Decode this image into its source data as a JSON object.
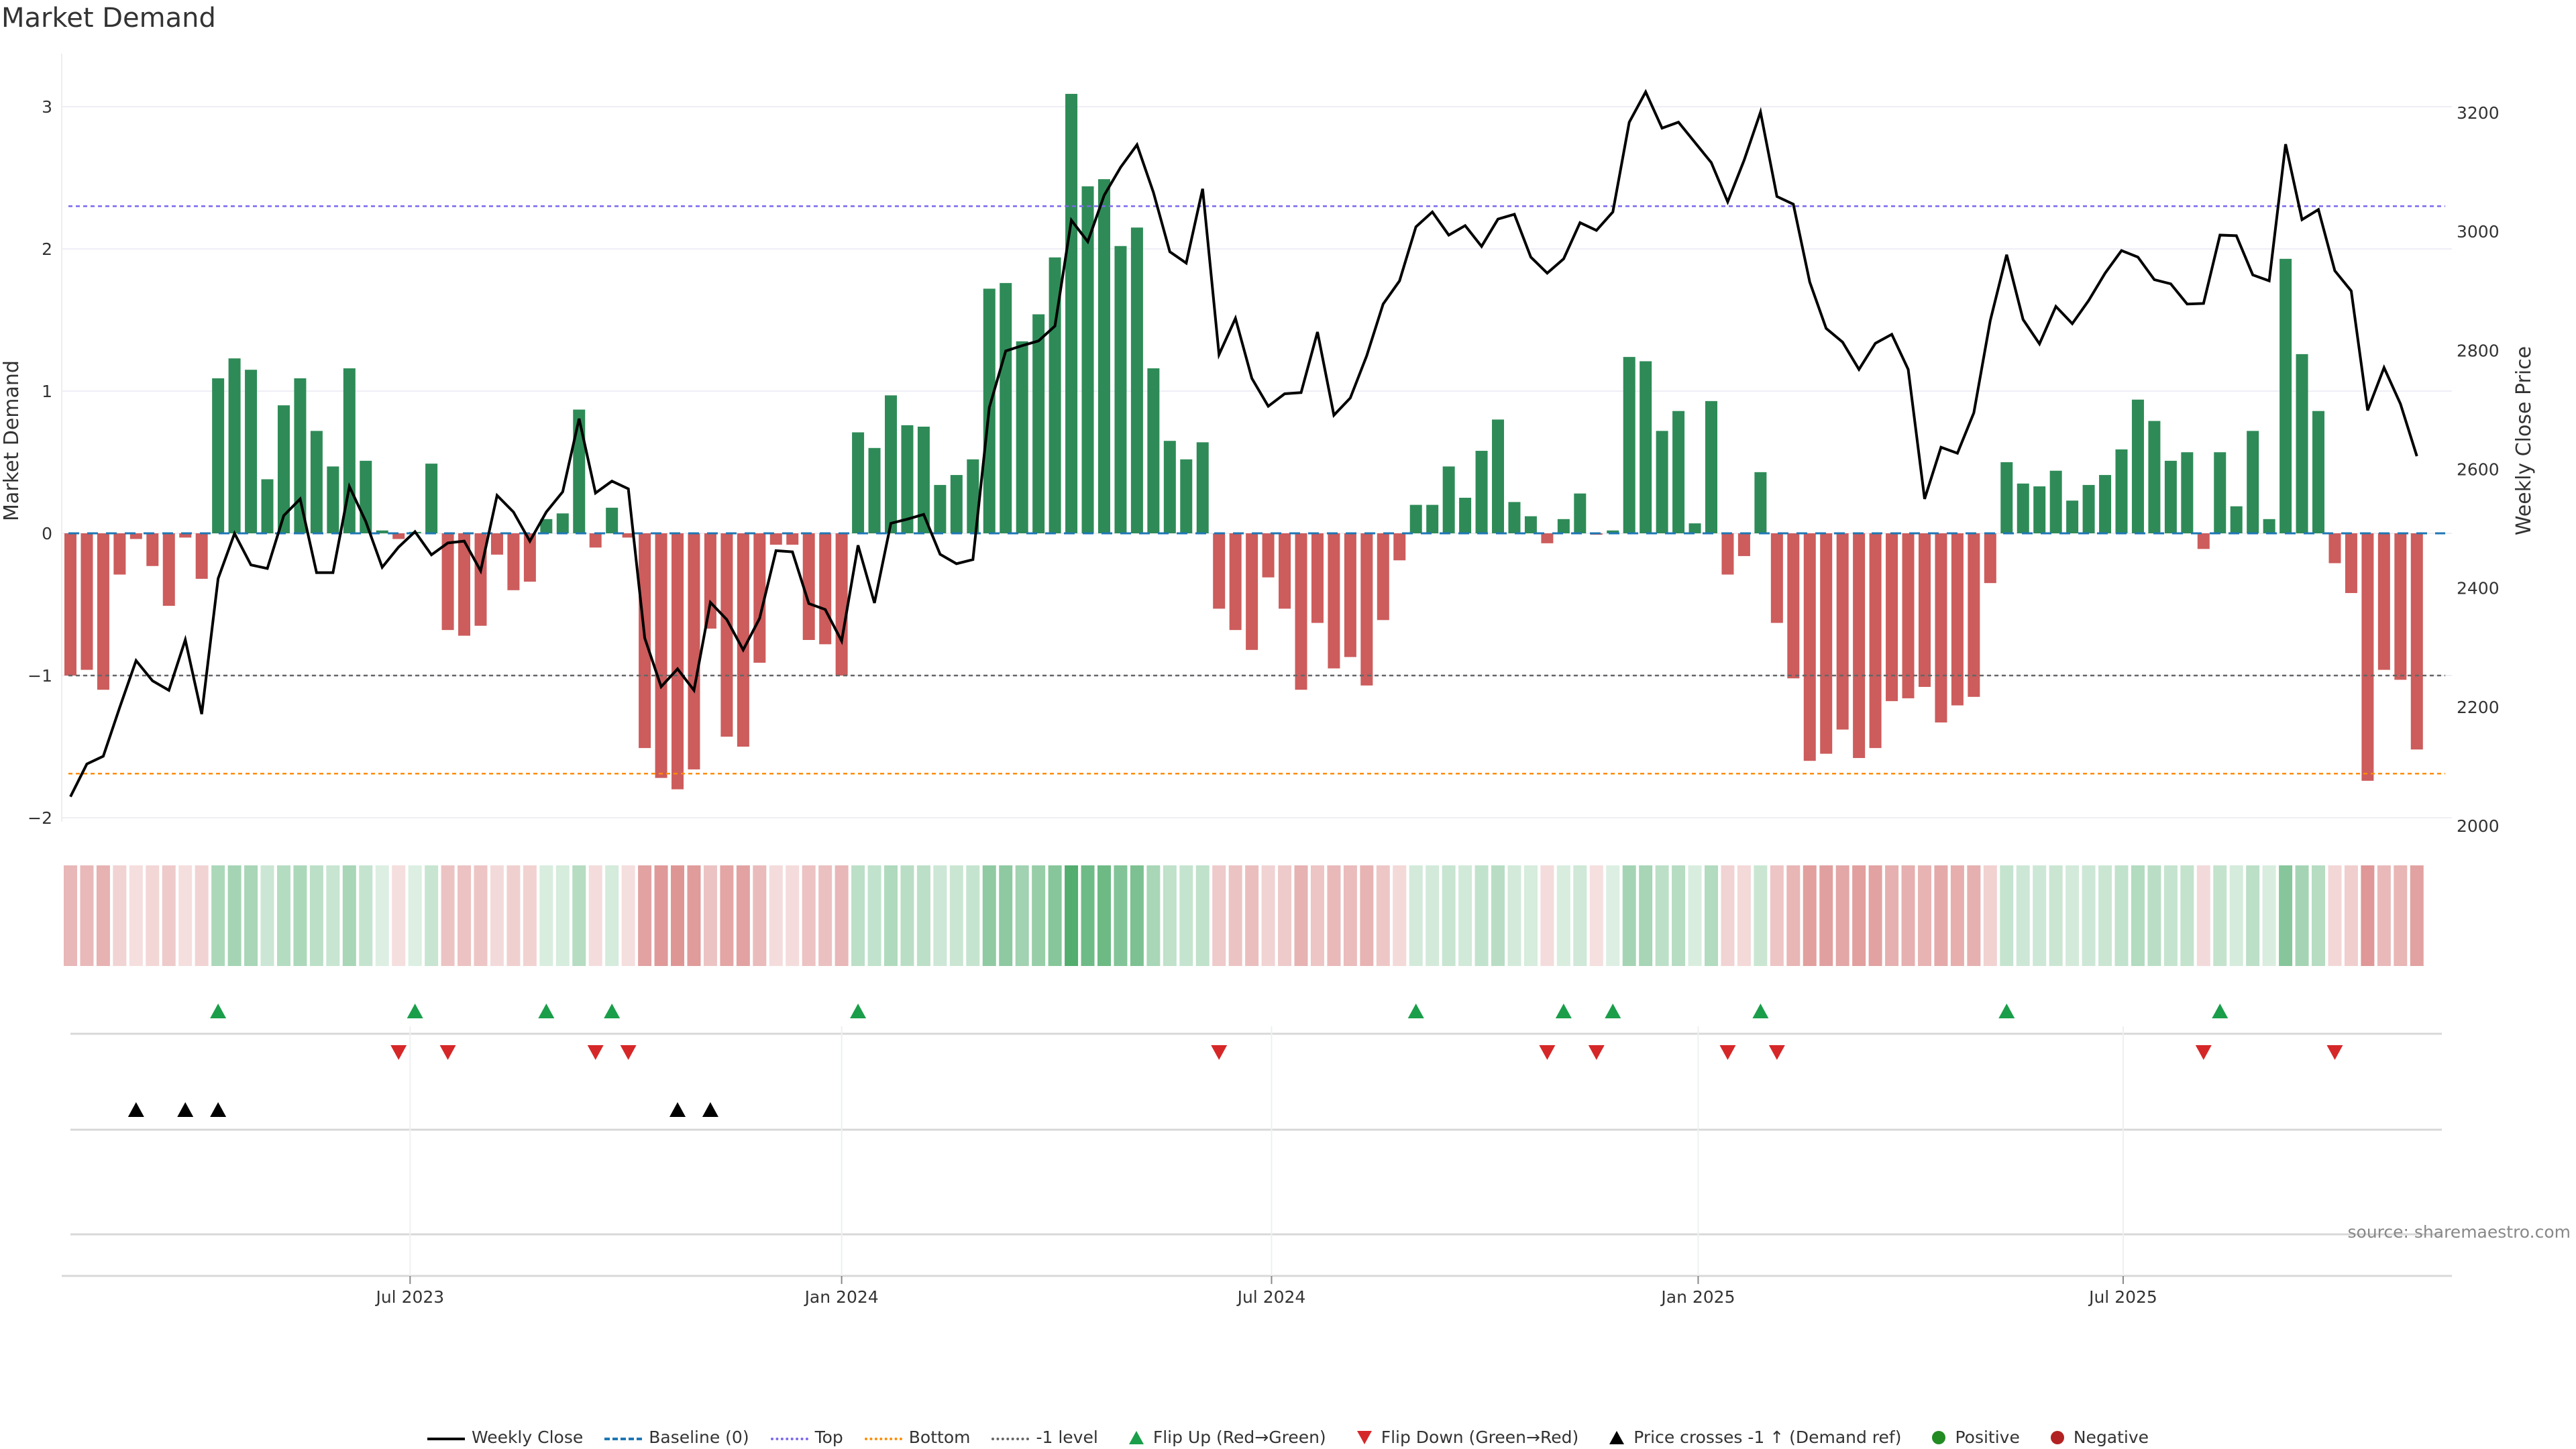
{
  "title": "Market Demand",
  "source": "source: sharemaestro.com",
  "colors": {
    "positive": "#2e8b57",
    "negative": "#cd5c5c",
    "top": "#7b68ee",
    "bottom": "#ff8c00",
    "minus1": "#666666",
    "baseline": "#1f77b4",
    "flip_up": "#1a9e4a",
    "flip_down": "#d62728",
    "cross": "#000000",
    "legend_pos": "#228b22",
    "legend_neg": "#b22222"
  },
  "legend": [
    {
      "label": "Weekly Close",
      "icon": "solid-line"
    },
    {
      "label": "Baseline (0)",
      "icon": "dashed-line"
    },
    {
      "label": "Top",
      "icon": "dotted-line"
    },
    {
      "label": "Bottom",
      "icon": "dotted-line"
    },
    {
      "label": "-1 level",
      "icon": "dotted-line"
    },
    {
      "label": "Flip Up (Red→Green)",
      "icon": "triangle-up"
    },
    {
      "label": "Flip Down (Green→Red)",
      "icon": "triangle-down"
    },
    {
      "label": "Price crosses -1 ↑ (Demand ref)",
      "icon": "triangle-up"
    },
    {
      "label": "Positive",
      "icon": "dot"
    },
    {
      "label": "Negative",
      "icon": "dot"
    }
  ],
  "chart_data": {
    "type": "bar",
    "title": "Market Demand",
    "ylabel": "Market Demand",
    "y2label": "Weekly Close Price",
    "yticks": [
      3,
      2,
      1,
      0,
      -1,
      -2
    ],
    "y2ticks": [
      3200,
      3000,
      2800,
      2600,
      2400,
      2200,
      2000
    ],
    "ylim": [
      -2,
      3.4
    ],
    "y2lim": [
      2000,
      3300
    ],
    "reference_lines": {
      "top": 2.3,
      "bottom": -1.69,
      "minus_one": -1,
      "baseline": 0
    },
    "xticks": [
      {
        "label": "Jul 2023",
        "week_index": 20.7
      },
      {
        "label": "Jan 2024",
        "week_index": 47.0
      },
      {
        "label": "Jul 2024",
        "week_index": 73.2
      },
      {
        "label": "Jan 2025",
        "week_index": 99.2
      },
      {
        "label": "Jul 2025",
        "week_index": 125.1
      }
    ],
    "series": [
      {
        "name": "Market Demand",
        "values": [
          -1.0,
          -0.96,
          -1.1,
          -0.29,
          -0.04,
          -0.23,
          -0.51,
          -0.03,
          -0.32,
          1.09,
          1.23,
          1.15,
          0.38,
          0.9,
          1.09,
          0.72,
          0.47,
          1.16,
          0.51,
          0.02,
          -0.04,
          0.01,
          0.49,
          -0.68,
          -0.72,
          -0.65,
          -0.15,
          -0.4,
          -0.34,
          0.1,
          0.14,
          0.87,
          -0.1,
          0.18,
          -0.03,
          -1.51,
          -1.72,
          -1.8,
          -1.66,
          -0.67,
          -1.43,
          -1.5,
          -0.91,
          -0.08,
          -0.08,
          -0.75,
          -0.78,
          -1.0,
          0.71,
          0.6,
          0.97,
          0.76,
          0.75,
          0.34,
          0.41,
          0.52,
          1.72,
          1.76,
          1.35,
          1.54,
          1.94,
          3.09,
          2.44,
          2.49,
          2.02,
          2.15,
          1.16,
          0.65,
          0.52,
          0.64,
          -0.53,
          -0.68,
          -0.82,
          -0.31,
          -0.53,
          -1.1,
          -0.63,
          -0.95,
          -0.87,
          -1.07,
          -0.61,
          -0.19,
          0.2,
          0.2,
          0.47,
          0.25,
          0.58,
          0.8,
          0.22,
          0.12,
          -0.07,
          0.1,
          0.28,
          -0.01,
          0.02,
          1.24,
          1.21,
          0.72,
          0.86,
          0.07,
          0.93,
          -0.29,
          -0.16,
          0.43,
          -0.63,
          -1.02,
          -1.6,
          -1.55,
          -1.38,
          -1.58,
          -1.51,
          -1.18,
          -1.16,
          -1.08,
          -1.33,
          -1.21,
          -1.15,
          -0.35,
          0.5,
          0.35,
          0.33,
          0.44,
          0.23,
          0.34,
          0.41,
          0.59,
          0.94,
          0.79,
          0.51,
          0.57,
          -0.11,
          0.57,
          0.19,
          0.72,
          0.1,
          1.93,
          1.26,
          0.86,
          -0.21,
          -0.42,
          -1.74,
          -0.96,
          -1.03,
          -1.52
        ]
      },
      {
        "name": "Weekly Close",
        "axis": "right",
        "values": [
          2049,
          2104,
          2117,
          2199,
          2278,
          2244,
          2228,
          2313,
          2188,
          2416,
          2492,
          2439,
          2433,
          2522,
          2550,
          2426,
          2426,
          2571,
          2512,
          2435,
          2469,
          2495,
          2456,
          2476,
          2479,
          2429,
          2556,
          2528,
          2479,
          2528,
          2562,
          2685,
          2560,
          2580,
          2567,
          2316,
          2234,
          2264,
          2228,
          2376,
          2347,
          2296,
          2349,
          2463,
          2461,
          2374,
          2364,
          2311,
          2472,
          2375,
          2509,
          2516,
          2524,
          2457,
          2441,
          2448,
          2704,
          2799,
          2808,
          2816,
          2841,
          3019,
          2983,
          3061,
          3108,
          3146,
          3066,
          2966,
          2947,
          3072,
          2793,
          2854,
          2753,
          2706,
          2727,
          2729,
          2831,
          2691,
          2720,
          2791,
          2878,
          2917,
          3008,
          3033,
          2994,
          3010,
          2975,
          3021,
          3029,
          2957,
          2930,
          2954,
          3015,
          3002,
          3033,
          3184,
          3235,
          3174,
          3184,
          3150,
          3116,
          3050,
          3120,
          3201,
          3059,
          3046,
          2915,
          2837,
          2814,
          2768,
          2812,
          2827,
          2768,
          2550,
          2637,
          2627,
          2695,
          2850,
          2961,
          2852,
          2811,
          2874,
          2845,
          2884,
          2930,
          2968,
          2957,
          2919,
          2912,
          2878,
          2879,
          2994,
          2993,
          2927,
          2917,
          3147,
          3020,
          3037,
          2934,
          2900,
          2699,
          2771,
          2710,
          2622
        ]
      }
    ],
    "events": {
      "flip_up_week_index": [
        9,
        21,
        29,
        33,
        48,
        82,
        91,
        94,
        103,
        118,
        131
      ],
      "flip_down_week_index": [
        20,
        23,
        32,
        34,
        70,
        90,
        93,
        101,
        104,
        130,
        138
      ],
      "price_cross_week_index": [
        4,
        7,
        9,
        37,
        39
      ]
    }
  }
}
